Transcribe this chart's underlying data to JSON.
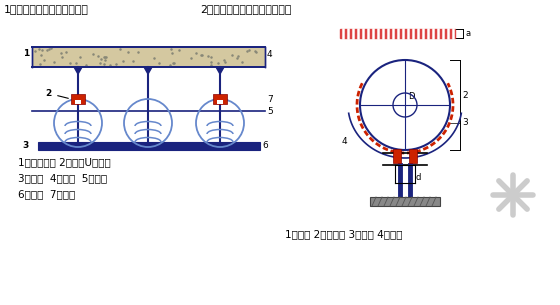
{
  "bg_color": "#ffffff",
  "title1": "1）多管悬吊弹簧支架安装：",
  "title2": "2）单管落地管道弹性支架安装",
  "label_left1": "1、膨胀螺栓 2、镀锌U型螺杆",
  "label_left2": "3、槽钢  4、楼板  5、吊杆",
  "label_left3": "6、螺母  7、弹簧",
  "label_right": "1、橡胶 2、刚托板 3、支撑 4、焊接",
  "blue": "#1a237e",
  "red": "#cc2200",
  "slab_fill": "#d4c8a0",
  "chan_fill": "#1a237e"
}
